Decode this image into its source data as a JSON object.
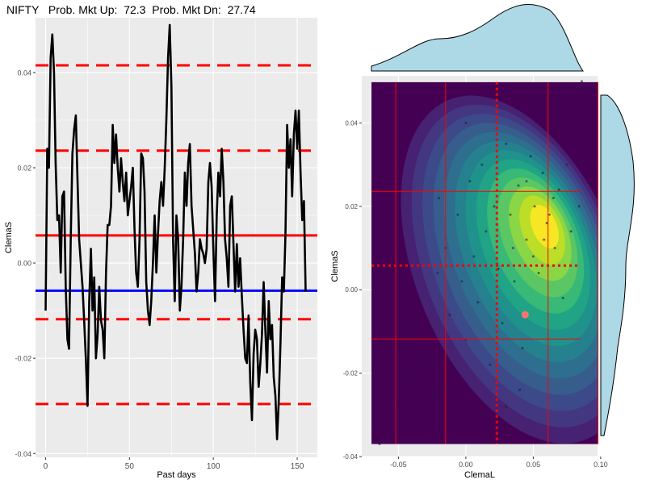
{
  "title": "NIFTY   Prob. Mkt Up:  72.3  Prob. Mkt Dn:  27.74",
  "chart_data": [
    {
      "type": "line",
      "xlabel": "Past days",
      "ylabel": "ClemaS",
      "xlim": [
        -6,
        162
      ],
      "ylim": [
        -0.0408,
        0.0515
      ],
      "x_ticks": [
        0,
        50,
        100,
        150
      ],
      "x_tick_labels": [
        "0",
        "50",
        "100",
        "150"
      ],
      "y_ticks": [
        -0.04,
        -0.02,
        0.0,
        0.02,
        0.04
      ],
      "y_tick_labels": [
        "-0.04",
        "-0.02",
        "0.00",
        "0.02",
        "0.04"
      ],
      "grid": true,
      "colors": {
        "panel": "#ebebeb",
        "grid": "#ffffff",
        "line": "#000000",
        "dashed": "#ff0000",
        "solid_red": "#ff0000",
        "blue": "#0000ff"
      },
      "hlines": [
        {
          "y": 0.0415,
          "style": "dashed",
          "color": "#ff0000"
        },
        {
          "y": 0.0236,
          "style": "dashed",
          "color": "#ff0000"
        },
        {
          "y": 0.0058,
          "style": "solid",
          "color": "#ff0000"
        },
        {
          "y": -0.0058,
          "style": "solid",
          "color": "#0000ff"
        },
        {
          "y": -0.0118,
          "style": "dashed",
          "color": "#ff0000"
        },
        {
          "y": -0.0296,
          "style": "dashed",
          "color": "#ff0000"
        }
      ],
      "series": [
        {
          "x": [
            0,
            1,
            2,
            3,
            4,
            5,
            6,
            7,
            8,
            9,
            10,
            11,
            12,
            13,
            14,
            15,
            16,
            17,
            18,
            19,
            20,
            21,
            22,
            23,
            24,
            25,
            26,
            27,
            28,
            29,
            30,
            31,
            32,
            33,
            34,
            35,
            36,
            37,
            38,
            39,
            40,
            41,
            42,
            43,
            44,
            45,
            46,
            47,
            48,
            49,
            50,
            51,
            52,
            53,
            54,
            55,
            56,
            57,
            58,
            59,
            60,
            61,
            62,
            63,
            64,
            65,
            66,
            67,
            68,
            69,
            70,
            71,
            72,
            73,
            74,
            75,
            76,
            77,
            78,
            79,
            80,
            81,
            82,
            83,
            84,
            85,
            86,
            87,
            88,
            89,
            90,
            91,
            92,
            93,
            94,
            95,
            96,
            97,
            98,
            99,
            100,
            101,
            102,
            103,
            104,
            105,
            106,
            107,
            108,
            109,
            110,
            111,
            112,
            113,
            114,
            115,
            116,
            117,
            118,
            119,
            120,
            121,
            122,
            123,
            124,
            125,
            126,
            127,
            128,
            129,
            130,
            131,
            132,
            133,
            134,
            135,
            136,
            137,
            138,
            139,
            140,
            141,
            142,
            143,
            144,
            145,
            146,
            147,
            148,
            149,
            150,
            151,
            152,
            153,
            154,
            155
          ],
          "y": [
            -0.01,
            0.024,
            0.02,
            0.043,
            0.048,
            0.04,
            0.021,
            0.009,
            0.01,
            -0.002,
            0.014,
            0.015,
            -0.005,
            -0.016,
            -0.018,
            0.005,
            0.023,
            0.028,
            0.031,
            0.018,
            0.005,
            0.0,
            -0.005,
            -0.012,
            -0.02,
            -0.03,
            -0.008,
            0.003,
            -0.01,
            -0.003,
            -0.02,
            -0.015,
            -0.005,
            -0.012,
            -0.014,
            -0.02,
            -0.002,
            0.008,
            0.008,
            0.012,
            0.029,
            0.021,
            0.027,
            0.02,
            0.015,
            0.022,
            0.017,
            0.013,
            0.019,
            0.01,
            0.013,
            0.016,
            0.02,
            0.007,
            -0.002,
            -0.005,
            0.005,
            0.023,
            0.022,
            0.015,
            -0.004,
            -0.01,
            -0.013,
            -0.008,
            0.0,
            0.01,
            -0.002,
            0.006,
            0.013,
            0.017,
            0.012,
            0.02,
            0.03,
            0.043,
            0.05,
            0.037,
            0.005,
            -0.008,
            0.01,
            0.005,
            -0.01,
            -0.005,
            0.005,
            0.019,
            0.012,
            0.021,
            0.025,
            0.012,
            0.007,
            0.002,
            -0.006,
            -0.002,
            0.005,
            0.003,
            0.002,
            0.0,
            0.003,
            0.017,
            0.021,
            0.016,
            0.003,
            -0.008,
            0.01,
            0.019,
            0.014,
            0.024,
            0.017,
            0.005,
            0.001,
            -0.005,
            0.012,
            0.014,
            0.004,
            -0.006,
            0.004,
            -0.005,
            0.001,
            -0.007,
            -0.014,
            -0.02,
            -0.021,
            -0.011,
            -0.025,
            -0.033,
            -0.019,
            -0.014,
            -0.016,
            -0.026,
            -0.021,
            -0.015,
            -0.004,
            -0.014,
            -0.023,
            -0.008,
            -0.016,
            -0.013,
            -0.024,
            -0.028,
            -0.037,
            -0.029,
            -0.017,
            -0.003,
            -0.006,
            0.006,
            0.029,
            0.02,
            0.026,
            0.014,
            0.027,
            0.032,
            0.024,
            0.032,
            0.019,
            0.009,
            0.013,
            -0.006
          ]
        }
      ]
    },
    {
      "type": "heatmap",
      "subtype": "2d-density-contour-with-marginals",
      "xlabel": "ClemaL",
      "ylabel": "ClemaS",
      "xlim": [
        -0.0772,
        0.0977
      ],
      "ylim": [
        -0.04,
        0.0513
      ],
      "x_ticks": [
        -0.05,
        0.0,
        0.05,
        0.1
      ],
      "x_tick_labels": [
        "-0.05",
        "0.00",
        "0.05",
        "0.10"
      ],
      "y_ticks": [
        -0.04,
        -0.02,
        0.0,
        0.02,
        0.04
      ],
      "y_tick_labels": [
        "-0.04",
        "-0.02",
        "0.00",
        "0.02",
        "0.04"
      ],
      "grid": true,
      "colors": {
        "panel": "#ebebeb",
        "background": "#440154",
        "marginal_fill": "#add8e6",
        "lines": "#ff0000",
        "highlight_point": "#f8766d",
        "points": "#1a1a2e"
      },
      "density_center": [
        0.06,
        0.016
      ],
      "highlight_point": {
        "x": 0.044,
        "y": -0.006
      },
      "vlines_solid": [
        -0.052,
        -0.015,
        0.061,
        0.098
      ],
      "vline_dotted": 0.023,
      "hlines_solid": [
        0.0236,
        -0.0118
      ],
      "hline_dotted": 0.0058,
      "points": [
        [
          -0.064,
          -0.037
        ],
        [
          -0.052,
          -0.028
        ],
        [
          -0.05,
          -0.02
        ],
        [
          -0.047,
          -0.008
        ],
        [
          -0.044,
          -0.022
        ],
        [
          -0.04,
          -0.014
        ],
        [
          -0.037,
          -0.03
        ],
        [
          -0.034,
          -0.003
        ],
        [
          -0.031,
          -0.018
        ],
        [
          -0.028,
          -0.01
        ],
        [
          -0.024,
          -0.026
        ],
        [
          -0.021,
          0.004
        ],
        [
          -0.018,
          -0.015
        ],
        [
          -0.015,
          0.01
        ],
        [
          -0.012,
          -0.006
        ],
        [
          -0.009,
          -0.02
        ],
        [
          -0.006,
          0.018
        ],
        [
          -0.003,
          0.002
        ],
        [
          0.0,
          -0.012
        ],
        [
          0.003,
          0.026
        ],
        [
          0.006,
          0.008
        ],
        [
          0.009,
          -0.003
        ],
        [
          0.012,
          0.03
        ],
        [
          0.015,
          0.014
        ],
        [
          0.018,
          -0.018
        ],
        [
          0.021,
          0.02
        ],
        [
          0.024,
          0.005
        ],
        [
          0.027,
          -0.008
        ],
        [
          0.03,
          0.035
        ],
        [
          0.033,
          0.018
        ],
        [
          0.036,
          0.002
        ],
        [
          0.039,
          0.025
        ],
        [
          0.042,
          -0.014
        ],
        [
          0.045,
          0.012
        ],
        [
          0.048,
          0.032
        ],
        [
          0.051,
          0.02
        ],
        [
          0.054,
          0.004
        ],
        [
          0.057,
          0.028
        ],
        [
          0.06,
          0.016
        ],
        [
          0.063,
          0.038
        ],
        [
          0.066,
          0.01
        ],
        [
          0.069,
          0.024
        ],
        [
          0.072,
          -0.002
        ],
        [
          0.075,
          0.03
        ],
        [
          0.078,
          0.014
        ],
        [
          0.081,
          0.042
        ],
        [
          0.084,
          0.02
        ],
        [
          0.086,
          0.05
        ],
        [
          0.04,
          -0.024
        ],
        [
          0.012,
          -0.03
        ],
        [
          -0.02,
          0.022
        ],
        [
          0.0,
          0.04
        ],
        [
          0.055,
          0.045
        ],
        [
          0.03,
          -0.028
        ],
        [
          0.065,
          0.022
        ],
        [
          0.058,
          0.012
        ],
        [
          0.062,
          0.018
        ],
        [
          0.05,
          0.008
        ],
        [
          0.045,
          0.026
        ],
        [
          0.035,
          0.01
        ]
      ],
      "marginal_x": {
        "position": "top"
      },
      "marginal_y": {
        "position": "right"
      }
    }
  ]
}
